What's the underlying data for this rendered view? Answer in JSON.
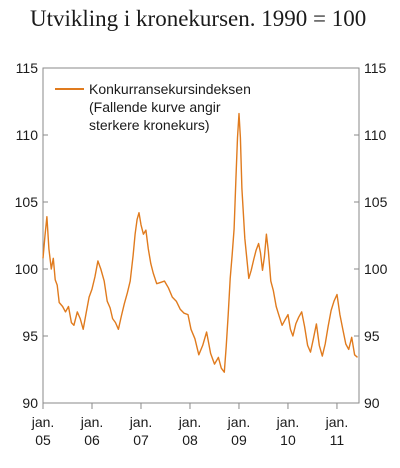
{
  "chart_data": {
    "type": "line",
    "title": "Utvikling i kronekursen. 1990 = 100",
    "xlabel": "",
    "ylabel": "",
    "xlim": [
      2005.0,
      2011.45
    ],
    "ylim": [
      90,
      115
    ],
    "yticks": [
      90,
      95,
      100,
      105,
      110,
      115
    ],
    "xticks": [
      {
        "value": 2005.0,
        "label": [
          "jan.",
          "05"
        ]
      },
      {
        "value": 2006.0,
        "label": [
          "jan.",
          "06"
        ]
      },
      {
        "value": 2007.0,
        "label": [
          "jan.",
          "07"
        ]
      },
      {
        "value": 2008.0,
        "label": [
          "jan.",
          "08"
        ]
      },
      {
        "value": 2009.0,
        "label": [
          "jan.",
          "09"
        ]
      },
      {
        "value": 2010.0,
        "label": [
          "jan.",
          "10"
        ]
      },
      {
        "value": 2011.0,
        "label": [
          "jan.",
          "11"
        ]
      }
    ],
    "grid": false,
    "legend_position": "top-left",
    "series": [
      {
        "name": "Konkurransekursindeksen",
        "name_lines": [
          "Konkurransekursindeksen",
          "(Fallende kurve angir",
          "sterkere kronekurs)"
        ],
        "color": "#E07B1E",
        "x": [
          2005.0,
          2005.04,
          2005.08,
          2005.12,
          2005.17,
          2005.21,
          2005.25,
          2005.29,
          2005.33,
          2005.4,
          2005.46,
          2005.52,
          2005.58,
          2005.63,
          2005.7,
          2005.76,
          2005.82,
          2005.88,
          2005.94,
          2006.0,
          2006.06,
          2006.12,
          2006.18,
          2006.25,
          2006.31,
          2006.37,
          2006.42,
          2006.48,
          2006.54,
          2006.6,
          2006.66,
          2006.72,
          2006.78,
          2006.84,
          2006.88,
          2006.92,
          2006.96,
          2007.0,
          2007.05,
          2007.1,
          2007.15,
          2007.2,
          2007.25,
          2007.32,
          2007.4,
          2007.48,
          2007.56,
          2007.64,
          2007.72,
          2007.8,
          2007.88,
          2007.96,
          2008.02,
          2008.1,
          2008.18,
          2008.26,
          2008.34,
          2008.42,
          2008.5,
          2008.58,
          2008.64,
          2008.7,
          2008.74,
          2008.78,
          2008.82,
          2008.86,
          2008.9,
          2008.94,
          2008.97,
          2009.0,
          2009.03,
          2009.06,
          2009.09,
          2009.12,
          2009.16,
          2009.2,
          2009.25,
          2009.3,
          2009.35,
          2009.4,
          2009.44,
          2009.48,
          2009.52,
          2009.56,
          2009.6,
          2009.65,
          2009.7,
          2009.76,
          2009.82,
          2009.88,
          2009.94,
          2010.0,
          2010.05,
          2010.1,
          2010.16,
          2010.22,
          2010.28,
          2010.34,
          2010.4,
          2010.46,
          2010.52,
          2010.58,
          2010.64,
          2010.7,
          2010.76,
          2010.82,
          2010.88,
          2010.94,
          2011.0,
          2011.06,
          2011.12,
          2011.18,
          2011.24,
          2011.3,
          2011.36,
          2011.42
        ],
        "y": [
          100.8,
          102.5,
          103.9,
          101.5,
          100.0,
          100.8,
          99.2,
          98.8,
          97.5,
          97.2,
          96.8,
          97.2,
          96.0,
          95.8,
          96.8,
          96.3,
          95.5,
          96.7,
          97.9,
          98.5,
          99.4,
          100.6,
          100.0,
          99.1,
          97.6,
          97.1,
          96.3,
          96.0,
          95.5,
          96.5,
          97.4,
          98.2,
          99.1,
          101.0,
          102.6,
          103.7,
          104.2,
          103.3,
          102.6,
          102.9,
          101.5,
          100.4,
          99.7,
          98.9,
          99.0,
          99.1,
          98.6,
          97.9,
          97.6,
          97.0,
          96.7,
          96.6,
          95.5,
          94.8,
          93.6,
          94.3,
          95.3,
          93.7,
          92.9,
          93.4,
          92.6,
          92.3,
          94.2,
          96.6,
          99.3,
          101.0,
          103.0,
          106.9,
          109.8,
          111.6,
          109.8,
          106.0,
          104.1,
          102.3,
          100.8,
          99.3,
          99.9,
          100.7,
          101.4,
          101.9,
          101.2,
          99.9,
          100.9,
          102.6,
          101.3,
          99.1,
          98.4,
          97.2,
          96.5,
          95.8,
          96.2,
          96.6,
          95.5,
          95.0,
          95.9,
          96.4,
          96.8,
          95.7,
          94.3,
          93.8,
          94.8,
          95.9,
          94.3,
          93.5,
          94.4,
          95.7,
          96.9,
          97.6,
          98.1,
          96.6,
          95.5,
          94.4,
          94.0,
          94.9,
          93.6,
          93.4
        ]
      }
    ]
  }
}
